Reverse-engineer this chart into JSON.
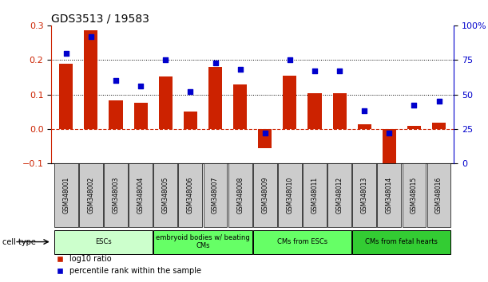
{
  "title": "GDS3513 / 19583",
  "samples": [
    "GSM348001",
    "GSM348002",
    "GSM348003",
    "GSM348004",
    "GSM348005",
    "GSM348006",
    "GSM348007",
    "GSM348008",
    "GSM348009",
    "GSM348010",
    "GSM348011",
    "GSM348012",
    "GSM348013",
    "GSM348014",
    "GSM348015",
    "GSM348016"
  ],
  "log10_ratio": [
    0.19,
    0.285,
    0.082,
    0.075,
    0.152,
    0.05,
    0.18,
    0.13,
    -0.055,
    0.155,
    0.103,
    0.104,
    0.013,
    -0.115,
    0.008,
    0.018
  ],
  "percentile_rank": [
    80,
    92,
    60,
    56,
    75,
    52,
    73,
    68,
    22,
    75,
    67,
    67,
    38,
    22,
    42,
    45
  ],
  "bar_color": "#cc2200",
  "dot_color": "#0000cc",
  "ylim_left": [
    -0.1,
    0.3
  ],
  "ylim_right": [
    0,
    100
  ],
  "yticks_left": [
    -0.1,
    0.0,
    0.1,
    0.2,
    0.3
  ],
  "yticks_right": [
    0,
    25,
    50,
    75,
    100
  ],
  "cell_type_groups": [
    {
      "label": "ESCs",
      "start": 0,
      "end": 3,
      "color": "#ccffcc"
    },
    {
      "label": "embryoid bodies w/ beating\nCMs",
      "start": 4,
      "end": 7,
      "color": "#66ff66"
    },
    {
      "label": "CMs from ESCs",
      "start": 8,
      "end": 11,
      "color": "#66ff66"
    },
    {
      "label": "CMs from fetal hearts",
      "start": 12,
      "end": 15,
      "color": "#33cc33"
    }
  ],
  "sample_box_color": "#cccccc",
  "background_color": "#ffffff"
}
